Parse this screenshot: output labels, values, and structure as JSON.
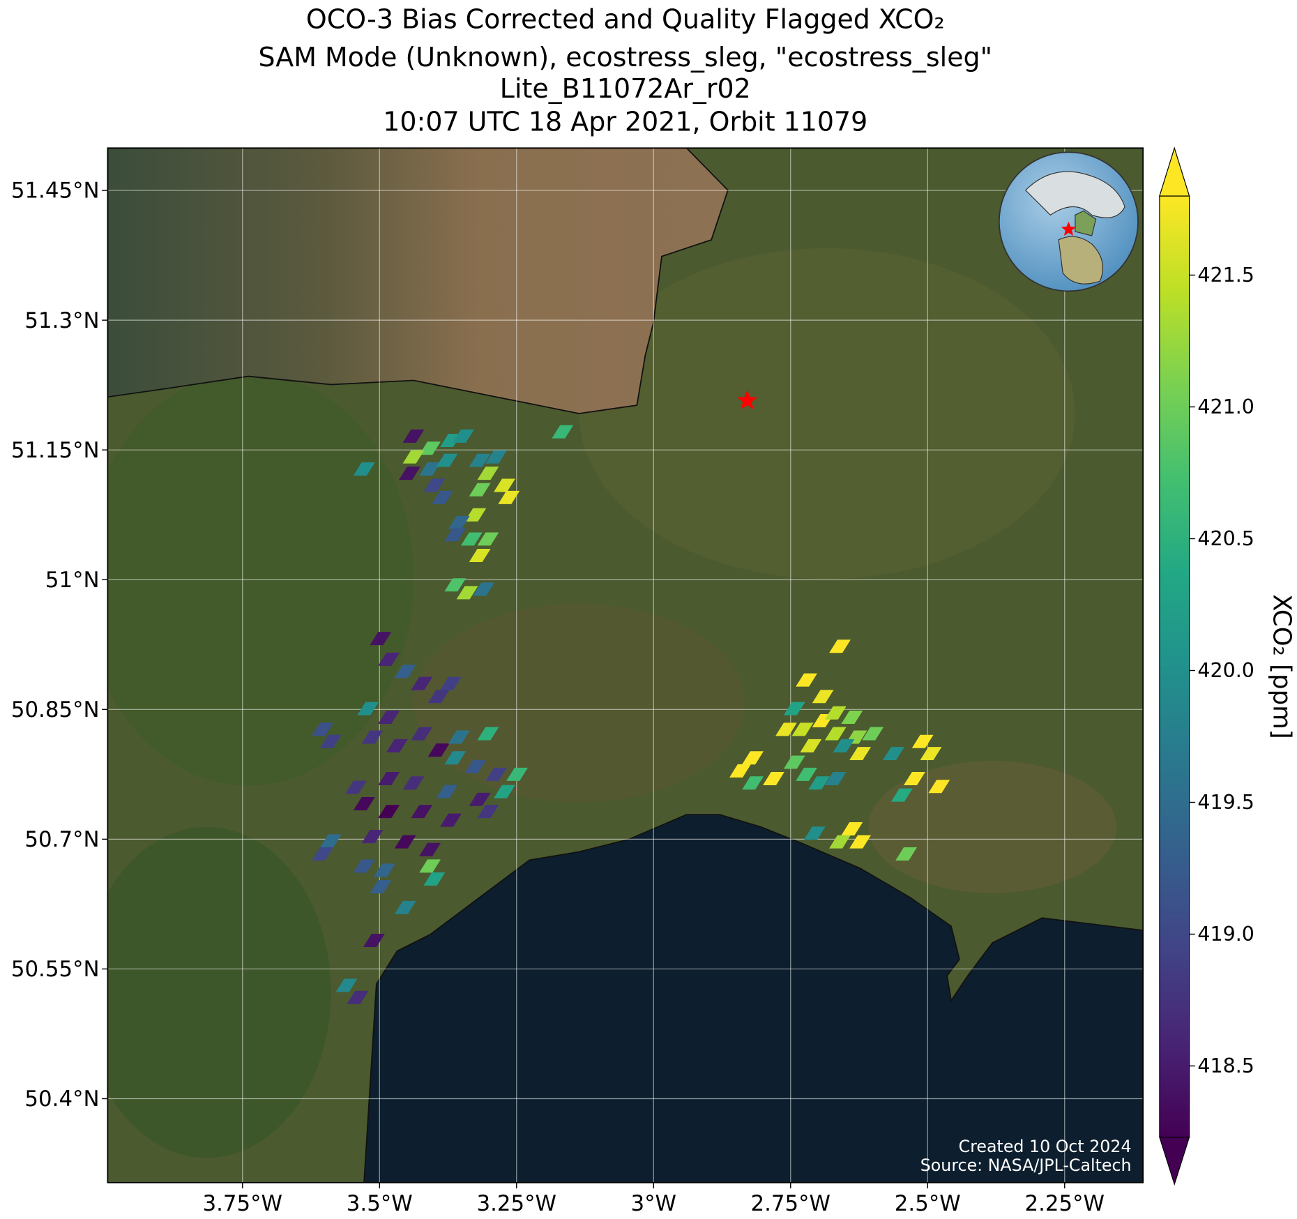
{
  "chart_data": {
    "type": "map",
    "title_lines": [
      "OCO-3 Bias Corrected and Quality Flagged XCO₂",
      "SAM Mode (Unknown), ecostress_sleg, \"ecostress_sleg\"",
      "Lite_B11072Ar_r02",
      "10:07 UTC 18 Apr 2021, Orbit 11079"
    ],
    "xlim": [
      -3.996,
      -2.107
    ],
    "ylim": [
      50.303,
      51.499
    ],
    "xticks": [
      {
        "value": -3.75,
        "label": "3.75°W"
      },
      {
        "value": -3.5,
        "label": "3.5°W"
      },
      {
        "value": -3.25,
        "label": "3.25°W"
      },
      {
        "value": -3,
        "label": "3°W"
      },
      {
        "value": -2.75,
        "label": "2.75°W"
      },
      {
        "value": -2.5,
        "label": "2.5°W"
      },
      {
        "value": -2.25,
        "label": "2.25°W"
      }
    ],
    "yticks": [
      {
        "value": 50.4,
        "label": "50.4°N"
      },
      {
        "value": 50.55,
        "label": "50.55°N"
      },
      {
        "value": 50.7,
        "label": "50.7°N"
      },
      {
        "value": 50.85,
        "label": "50.85°N"
      },
      {
        "value": 51,
        "label": "51°N"
      },
      {
        "value": 51.15,
        "label": "51.15°N"
      },
      {
        "value": 51.3,
        "label": "51.3°N"
      },
      {
        "value": 51.45,
        "label": "51.45°N"
      }
    ],
    "grid": true,
    "colormap": "viridis",
    "clim": [
      418.23,
      421.8
    ],
    "colorbar_ticks": [
      418.5,
      {
        "value": 419,
        "label": "419.0"
      },
      419.5,
      {
        "value": 420,
        "label": "420.0"
      },
      420.5,
      {
        "value": 421,
        "label": "421.0"
      },
      421.5
    ],
    "colorbar_label": "XCO₂ [ppm]",
    "target": {
      "x": -2.829,
      "y": 51.207,
      "color": "#ff0000"
    },
    "soundings": {
      "x": [
        -3.438,
        -3.408,
        -3.37,
        -3.347,
        -3.438,
        -3.445,
        -3.408,
        -3.377,
        -3.4,
        -3.385,
        -3.317,
        -3.287,
        -3.302,
        -3.317,
        -3.272,
        -3.264,
        -3.325,
        -3.355,
        -3.362,
        -3.332,
        -3.302,
        -3.317,
        -3.528,
        -3.166,
        -3.362,
        -3.34,
        -3.31,
        -3.498,
        -3.483,
        -3.453,
        -3.423,
        -3.392,
        -3.37,
        -3.521,
        -3.483,
        -3.604,
        -3.589,
        -3.513,
        -3.468,
        -3.423,
        -3.392,
        -3.355,
        -3.362,
        -3.302,
        -3.325,
        -3.287,
        -3.249,
        -3.272,
        -3.317,
        -3.377,
        -3.438,
        -3.483,
        -3.543,
        -3.528,
        -3.483,
        -3.423,
        -3.37,
        -3.302,
        -3.589,
        -3.513,
        -3.453,
        -3.408,
        -3.604,
        -3.528,
        -3.491,
        -3.408,
        -3.4,
        -3.498,
        -3.453,
        -3.51,
        -3.56,
        -3.54,
        -2.66,
        -2.721,
        -2.691,
        -2.743,
        -2.758,
        -2.728,
        -2.691,
        -2.668,
        -2.638,
        -2.668,
        -2.63,
        -2.6,
        -2.653,
        -2.623,
        -2.713,
        -2.743,
        -2.721,
        -2.698,
        -2.668,
        -2.819,
        -2.842,
        -2.819,
        -2.781,
        -2.562,
        -2.509,
        -2.494,
        -2.524,
        -2.479,
        -2.547,
        -2.638,
        -2.623,
        -2.66,
        -2.706,
        -2.539
      ],
      "y": [
        51.166,
        51.152,
        51.161,
        51.166,
        51.142,
        51.123,
        51.128,
        51.138,
        51.109,
        51.095,
        51.138,
        51.142,
        51.123,
        51.104,
        51.109,
        51.095,
        51.075,
        51.066,
        51.052,
        51.047,
        51.047,
        51.028,
        51.128,
        51.171,
        50.994,
        50.985,
        50.989,
        50.932,
        50.908,
        50.894,
        50.88,
        50.865,
        50.88,
        50.851,
        50.841,
        50.827,
        50.813,
        50.818,
        50.808,
        50.822,
        50.803,
        50.818,
        50.794,
        50.822,
        50.784,
        50.775,
        50.775,
        50.755,
        50.746,
        50.755,
        50.765,
        50.77,
        50.76,
        50.741,
        50.732,
        50.732,
        50.722,
        50.732,
        50.698,
        50.703,
        50.697,
        50.688,
        50.683,
        50.669,
        50.664,
        50.669,
        50.654,
        50.645,
        50.621,
        50.583,
        50.531,
        50.517,
        50.923,
        50.884,
        50.865,
        50.851,
        50.827,
        50.827,
        50.837,
        50.846,
        50.841,
        50.822,
        50.818,
        50.822,
        50.808,
        50.799,
        50.808,
        50.789,
        50.775,
        50.765,
        50.77,
        50.794,
        50.779,
        50.765,
        50.77,
        50.799,
        50.813,
        50.799,
        50.77,
        50.761,
        50.751,
        50.712,
        50.697,
        50.697,
        50.707,
        50.683
      ],
      "values": [
        418.4,
        420.9,
        420.2,
        420.0,
        421.3,
        418.4,
        419.6,
        420.0,
        419.0,
        419.2,
        419.8,
        419.8,
        421.3,
        421.0,
        421.6,
        421.7,
        421.4,
        419.4,
        419.2,
        420.7,
        421.0,
        421.6,
        420.0,
        420.6,
        420.8,
        421.3,
        419.6,
        418.4,
        418.6,
        419.3,
        418.6,
        418.8,
        418.9,
        420.0,
        418.6,
        419.1,
        418.9,
        418.8,
        418.6,
        418.7,
        418.3,
        419.6,
        419.9,
        420.5,
        419.2,
        418.9,
        420.6,
        420.3,
        418.5,
        419.3,
        418.7,
        418.5,
        418.8,
        418.3,
        418.2,
        418.4,
        418.5,
        418.8,
        419.5,
        418.6,
        418.3,
        418.4,
        419.0,
        419.2,
        419.4,
        421.0,
        420.3,
        419.3,
        419.8,
        418.4,
        419.9,
        418.7,
        421.8,
        421.8,
        421.7,
        420.3,
        421.7,
        421.5,
        421.8,
        421.4,
        421.1,
        421.4,
        421.2,
        421.0,
        420.0,
        421.7,
        421.6,
        420.9,
        420.7,
        420.2,
        419.8,
        421.8,
        421.8,
        420.7,
        421.8,
        420.0,
        421.8,
        421.7,
        421.8,
        421.8,
        420.4,
        421.8,
        421.8,
        421.3,
        420.0,
        421.0
      ]
    },
    "annotations": [
      "Created 10 Oct 2024",
      "Source: NASA/JPL-Caltech"
    ]
  }
}
